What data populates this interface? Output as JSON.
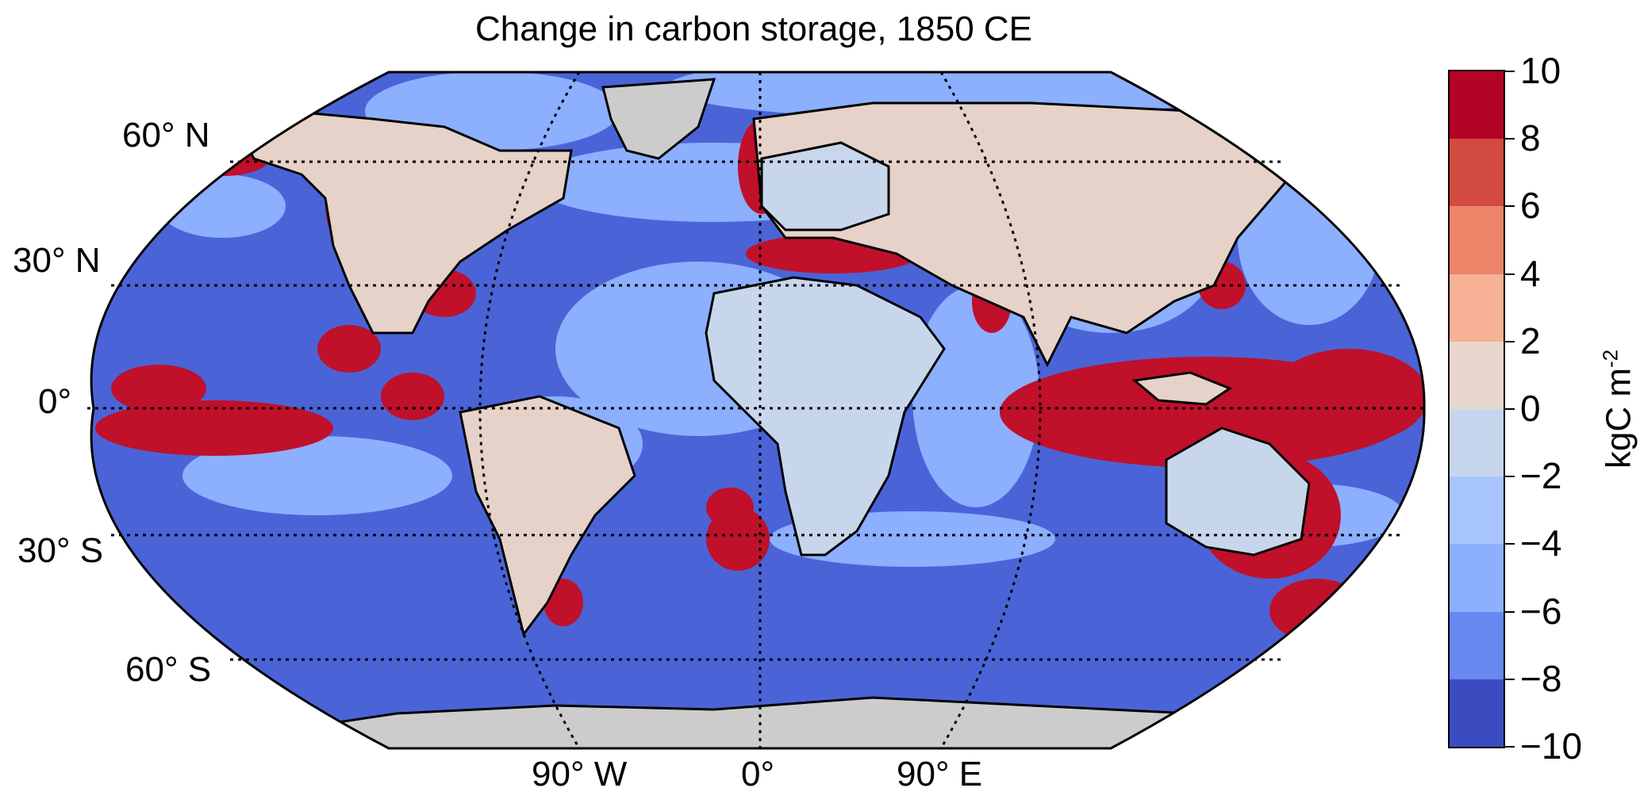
{
  "title": "Change in carbon storage, 1850 CE",
  "lat_labels": [
    "60°  N",
    "30°  N",
    "0°",
    "30°  S",
    "60°  S"
  ],
  "lon_labels": [
    "90°  W",
    "0°",
    "90°  E"
  ],
  "colorbar": {
    "ticks": [
      "10",
      "8",
      "6",
      "4",
      "2",
      "0",
      "−2",
      "−4",
      "−6",
      "−8",
      "−10"
    ],
    "unit": "kgC m",
    "unit_exp": "-2",
    "colors_top_to_bottom": [
      "#b40426",
      "#d24b40",
      "#ee8468",
      "#f7b194",
      "#e8d7cc",
      "#c7d6ec",
      "#a8c5fe",
      "#8caffe",
      "#6788ee",
      "#3b4cc0"
    ]
  },
  "colors": {
    "ocean_base": "#4a64d8",
    "high_positive": "#c0102a",
    "land_neutral": "#e6d2c8",
    "land_negative": "#c8d6ec",
    "ice": "#cccccc"
  }
}
